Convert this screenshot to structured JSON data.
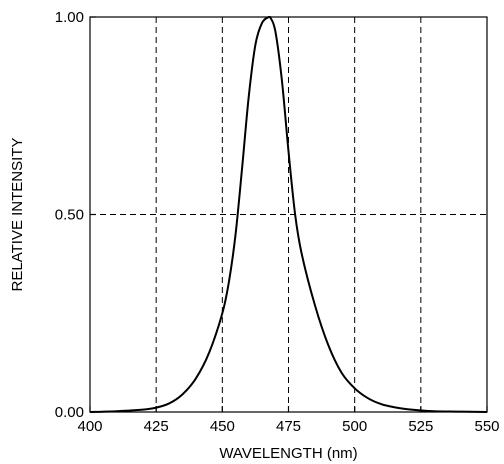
{
  "chart_data": {
    "type": "line",
    "xlabel": "WAVELENGTH (nm)",
    "ylabel": "RELATIVE INTENSITY",
    "xlim": [
      400,
      550
    ],
    "ylim": [
      0,
      1
    ],
    "x_ticks": [
      400,
      425,
      450,
      475,
      500,
      525,
      550
    ],
    "x_tick_labels": [
      "400",
      "425",
      "450",
      "475",
      "500",
      "525",
      "550"
    ],
    "y_ticks": [
      0,
      0.5,
      1
    ],
    "y_tick_labels": [
      "0.00",
      "0.50",
      "1.00"
    ],
    "grid": {
      "x": [
        425,
        450,
        475,
        500,
        525
      ],
      "y": [
        0.5
      ],
      "style": "dashed"
    },
    "series": [
      {
        "x": [
          400,
          410,
          420,
          425,
          430,
          435,
          440,
          445,
          450,
          452.5,
          455,
          457.5,
          460,
          462.5,
          465,
          467.5,
          468,
          470,
          472.5,
          475,
          477.5,
          480,
          485,
          490,
          495,
          500,
          505,
          510,
          515,
          520,
          525,
          530,
          540,
          550
        ],
        "y": [
          0.0,
          0.002,
          0.006,
          0.011,
          0.022,
          0.045,
          0.085,
          0.15,
          0.25,
          0.33,
          0.45,
          0.62,
          0.8,
          0.93,
          0.985,
          1.0,
          1.0,
          0.965,
          0.84,
          0.66,
          0.5,
          0.4,
          0.27,
          0.17,
          0.1,
          0.06,
          0.035,
          0.02,
          0.012,
          0.007,
          0.004,
          0.002,
          0.001,
          0.0
        ]
      }
    ],
    "line_color": "#000000"
  }
}
